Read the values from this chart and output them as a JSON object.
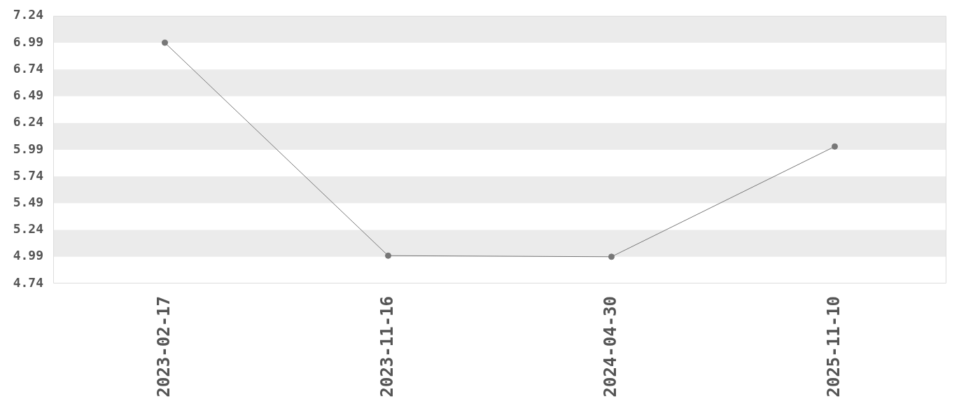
{
  "chart_data": {
    "type": "line",
    "categories": [
      "2023-02-17",
      "2023-11-16",
      "2024-04-30",
      "2025-11-10"
    ],
    "series": [
      {
        "color": "#777777",
        "values": [
          6.99,
          5.0,
          4.99,
          6.02
        ]
      }
    ],
    "ylim": [
      4.74,
      7.24
    ],
    "yticks": [
      4.74,
      4.99,
      5.24,
      5.49,
      5.74,
      5.99,
      6.24,
      6.49,
      6.74,
      6.99,
      7.24
    ],
    "bands": [
      {
        "axis": "y",
        "from": 6.99,
        "to": 7.24,
        "color": "#ebebeb"
      },
      {
        "axis": "y",
        "from": 6.49,
        "to": 6.74,
        "color": "#ebebeb"
      },
      {
        "axis": "y",
        "from": 5.99,
        "to": 6.24,
        "color": "#ebebeb"
      },
      {
        "axis": "y",
        "from": 5.49,
        "to": 5.74,
        "color": "#ebebeb"
      },
      {
        "axis": "y",
        "from": 4.99,
        "to": 5.24,
        "color": "#ebebeb"
      }
    ],
    "marker": "circle",
    "line_style": "solid"
  }
}
